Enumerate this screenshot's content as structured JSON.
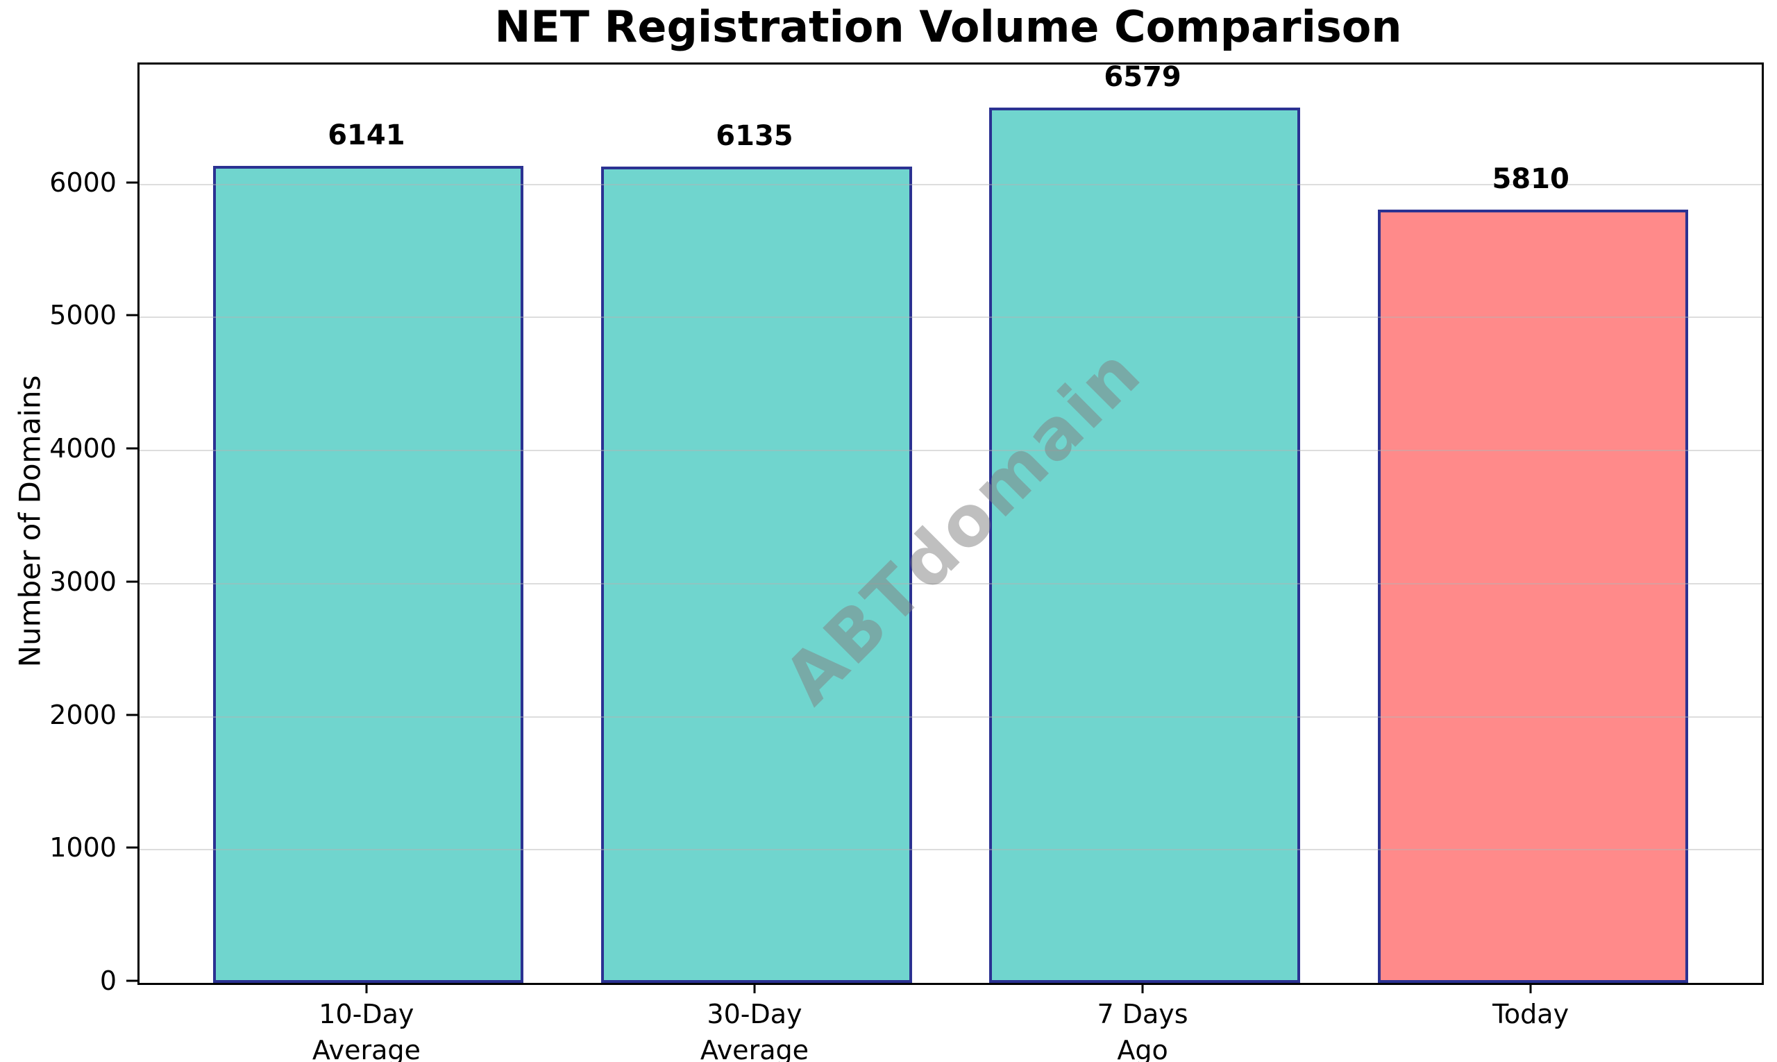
{
  "chart_data": {
    "type": "bar",
    "title": "NET Registration Volume Comparison",
    "ylabel": "Number of Domains",
    "xlabel": "",
    "categories": [
      [
        "10-Day",
        "Average"
      ],
      [
        "30-Day",
        "Average"
      ],
      [
        "7 Days",
        "Ago"
      ],
      [
        "Today"
      ]
    ],
    "values": [
      6141,
      6135,
      6579,
      5810
    ],
    "value_labels": [
      "6141",
      "6135",
      "6579",
      "5810"
    ],
    "bar_colors": [
      "#70D5CE",
      "#70D5CE",
      "#70D5CE",
      "#FF8A8A"
    ],
    "bar_edge_color": "#2B3292",
    "yticks": [
      0,
      1000,
      2000,
      3000,
      4000,
      5000,
      6000
    ],
    "ylim": [
      0,
      6900
    ],
    "xlim": [
      -0.59,
      3.59
    ],
    "bar_width": 0.8,
    "grid": "horizontal",
    "grid_color": "rgba(180,180,180,0.45)",
    "legend_position": "none",
    "watermark": "ABTdomain",
    "accent_colors": {
      "teal": "#70D5CE",
      "salmon": "#FF8A8A",
      "edge_navy": "#2B3292",
      "watermark_gray": "#808080"
    }
  }
}
